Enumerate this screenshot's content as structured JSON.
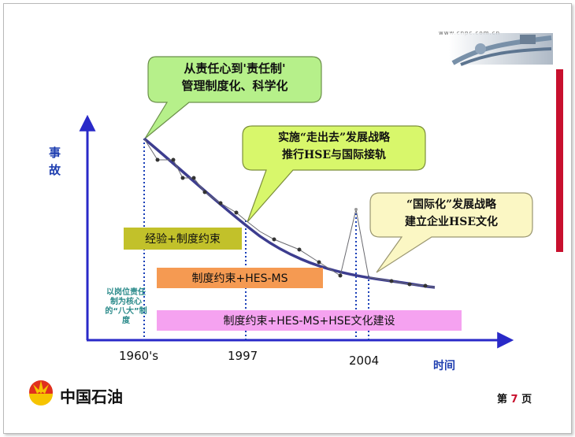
{
  "header": {
    "url_text": "www.cnpc.com.cn"
  },
  "y_axis_label": "事\n故",
  "x_axis_label": "时间",
  "x_ticks": [
    "1960's",
    "1997",
    "2004"
  ],
  "callouts": [
    {
      "line1": "从责任心到'责任制'",
      "line2": "管理制度化、科学化",
      "color": "#b6f08a"
    },
    {
      "line1": "实施“走出去”发展战略",
      "line2": "推行HSE与国际接轨",
      "color": "#d8f76b"
    },
    {
      "line1": "“国际化”发展战略",
      "line2": "建立企业HSE文化",
      "color": "#fbf7c4"
    }
  ],
  "stages": [
    {
      "text": "经验+制度约束",
      "color": "#c2c12a"
    },
    {
      "text": "制度约束+HES-MS",
      "color": "#f59a52"
    },
    {
      "text": "制度约束+HES-MS+HSE文化建设",
      "color": "#f5a2f0"
    }
  ],
  "side_note": "以岗位责任制为核心的“八大”制度",
  "footer": {
    "logo_text": "中国石油",
    "page_prefix": "第",
    "page_number": "7",
    "page_suffix": "页"
  },
  "colors": {
    "axis": "#2929c8",
    "curve": "#3d3d8f",
    "dotted": "#1a3fb8",
    "accent_red": "#c8102e"
  }
}
